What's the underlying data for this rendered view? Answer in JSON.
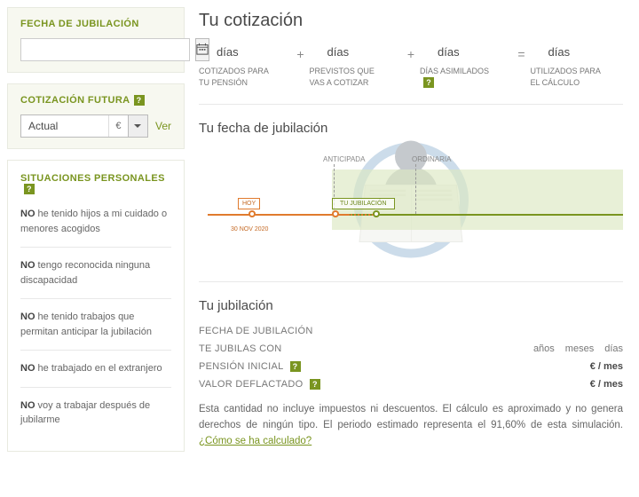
{
  "sidebar": {
    "fecha_title": "FECHA DE JUBILACIÓN",
    "fecha_value": "",
    "futura_title": "COTIZACIÓN FUTURA",
    "futura_value": "Actual",
    "futura_currency": "€",
    "ver_label": "Ver",
    "situaciones_title": "SITUACIONES PERSONALES",
    "situaciones": [
      {
        "bold": "NO",
        "text": " he tenido hijos a mi cuidado o menores acogidos"
      },
      {
        "bold": "NO",
        "text": " tengo reconocida ninguna discapacidad"
      },
      {
        "bold": "NO",
        "text": " he tenido trabajos que permitan anticipar la jubilación"
      },
      {
        "bold": "NO",
        "text": " he trabajado en el extranjero"
      },
      {
        "bold": "NO",
        "text": " voy a trabajar después de jubilarme"
      }
    ]
  },
  "main": {
    "cotizacion_title": "Tu cotización",
    "days_unit": "días",
    "cot_labels": [
      "COTIZADOS PARA TU PENSIÓN",
      "PREVISTOS QUE VAS A COTIZAR",
      "DÍAS ASIMILADOS",
      "UTILIZADOS PARA EL CÁLCULO"
    ],
    "fecha_title": "Tu fecha de jubilación",
    "timeline": {
      "anticipada": "ANTICIPADA",
      "ordinaria": "ORDINARIA",
      "hoy": "HOY",
      "jubilacion": "TU JUBILACIÓN",
      "hoy_date": "30 NOV 2020"
    },
    "jubilacion_title": "Tu jubilación",
    "rows": {
      "fecha_label": "FECHA DE JUBILACIÓN",
      "jubilas_label": "TE JUBILAS CON",
      "anos": "años",
      "meses": "meses",
      "dias": "días",
      "pension_label": "PENSIÓN INICIAL",
      "valor_label": "VALOR DEFLACTADO",
      "euromes": "€ / mes"
    },
    "note_pre": "Esta cantidad no incluye impuestos ni descuentos. El cálculo es aproximado y no genera derechos de ningún tipo. El periodo estimado representa el 91,60% de esta simulación. ",
    "note_link": "¿Cómo se ha calculado?"
  }
}
